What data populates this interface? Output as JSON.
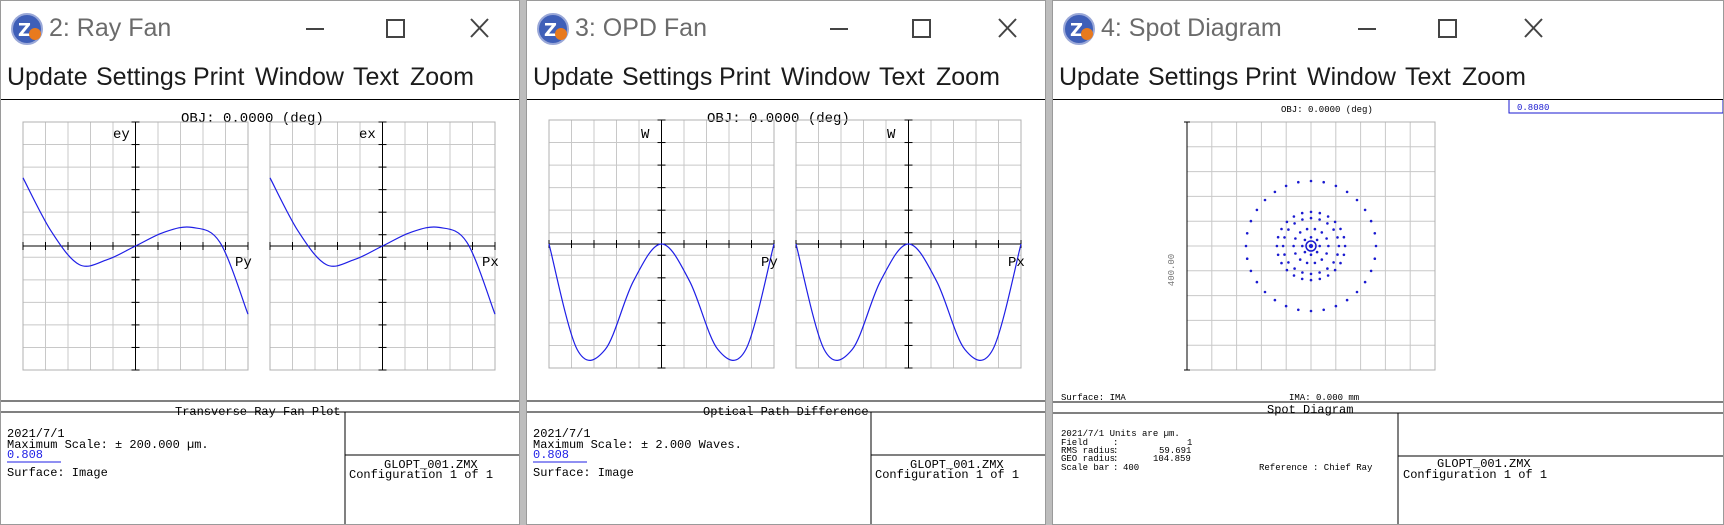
{
  "windows": [
    {
      "title": "2: Ray Fan",
      "menu": [
        "Update",
        "Settings",
        "Print",
        "Window",
        "Text",
        "Zoom"
      ],
      "header": "OBJ: 0.0000 (deg)",
      "left_axis": {
        "top": "ey",
        "right": "Py"
      },
      "right_axis": {
        "top": "ex",
        "right": "Px"
      },
      "caption": "Transverse Ray Fan Plot",
      "date": "2021/7/1",
      "scale": "Maximum Scale: ± 200.000 µm.",
      "wavelength": "0.808",
      "surface": "Surface: Image",
      "file": "GLOPT_001.ZMX",
      "config": "Configuration 1 of 1"
    },
    {
      "title": "3: OPD Fan",
      "menu": [
        "Update",
        "Settings",
        "Print",
        "Window",
        "Text",
        "Zoom"
      ],
      "header": "OBJ: 0.0000 (deg)",
      "left_axis": {
        "top": "W",
        "right": "Py"
      },
      "right_axis": {
        "top": "W",
        "right": "Px"
      },
      "caption": "Optical Path Difference",
      "date": "2021/7/1",
      "scale": "Maximum Scale: ± 2.000 Waves.",
      "wavelength": "0.808",
      "surface": "Surface: Image",
      "file": "GLOPT_001.ZMX",
      "config": "Configuration 1 of 1"
    },
    {
      "title": "4: Spot Diagram",
      "menu": [
        "Update",
        "Settings",
        "Print",
        "Window",
        "Text",
        "Zoom"
      ],
      "header": "OBJ: 0.0000 (deg)",
      "legend": "0.8080",
      "y_scale_label": "400.00",
      "surface_label": "Surface: IMA",
      "ima_label": "IMA: 0.000 mm",
      "caption": "Spot Diagram",
      "info": {
        "date_units": "2021/7/1  Units are µm.",
        "field_label": "Field",
        "field_value": "1",
        "rms_label": "RMS radius",
        "rms_value": "59.691",
        "geo_label": "GEO radius",
        "geo_value": "104.859",
        "scale_label": "Scale bar",
        "scale_value": "400",
        "reference": "Reference  : Chief Ray"
      },
      "file": "GLOPT_001.ZMX",
      "config": "Configuration 1 of 1"
    }
  ],
  "colors": {
    "curve": "#1f1fe6",
    "spot": "#1a1ad0",
    "grid": "#c8c8c8"
  },
  "chart_data": [
    {
      "type": "line",
      "title": "Transverse Ray Fan Plot",
      "panels": [
        {
          "xlabel": "Py",
          "ylabel": "ey",
          "x": [
            -1,
            -0.75,
            -0.5,
            -0.25,
            0,
            0.25,
            0.5,
            0.75,
            1
          ],
          "y": [
            0.55,
            0.12,
            -0.15,
            -0.11,
            0,
            0.11,
            0.15,
            0.03,
            -0.55
          ],
          "xlim": [
            -1,
            1
          ],
          "ylim": [
            -1,
            1
          ]
        },
        {
          "xlabel": "Px",
          "ylabel": "ex",
          "x": [
            -1,
            -0.75,
            -0.5,
            -0.25,
            0,
            0.25,
            0.5,
            0.75,
            1
          ],
          "y": [
            0.55,
            0.12,
            -0.15,
            -0.11,
            0,
            0.11,
            0.15,
            0.03,
            -0.55
          ],
          "xlim": [
            -1,
            1
          ],
          "ylim": [
            -1,
            1
          ]
        }
      ]
    },
    {
      "type": "line",
      "title": "Optical Path Difference",
      "panels": [
        {
          "xlabel": "Py",
          "ylabel": "W",
          "x": [
            -1,
            -0.75,
            -0.5,
            -0.25,
            0,
            0.25,
            0.5,
            0.75,
            1
          ],
          "y": [
            0,
            -0.85,
            -0.85,
            -0.3,
            0,
            -0.3,
            -0.85,
            -0.85,
            0
          ],
          "xlim": [
            -1,
            1
          ],
          "ylim": [
            -1,
            1
          ]
        },
        {
          "xlabel": "Px",
          "ylabel": "W",
          "x": [
            -1,
            -0.75,
            -0.5,
            -0.25,
            0,
            0.25,
            0.5,
            0.75,
            1
          ],
          "y": [
            0,
            -0.85,
            -0.85,
            -0.3,
            0,
            -0.3,
            -0.85,
            -0.85,
            0
          ],
          "xlim": [
            -1,
            1
          ],
          "ylim": [
            -1,
            1
          ]
        }
      ]
    },
    {
      "type": "scatter",
      "title": "Spot Diagram",
      "rings": [
        {
          "radius": 104.859,
          "points": 32
        },
        {
          "radius": 55,
          "points": 24
        },
        {
          "radius": 45,
          "points": 20
        },
        {
          "radius": 28,
          "points": 14
        },
        {
          "radius": 14,
          "points": 8
        }
      ],
      "center": [
        0,
        0
      ],
      "xlim": [
        -200,
        200
      ],
      "ylim": [
        -200,
        200
      ]
    }
  ]
}
